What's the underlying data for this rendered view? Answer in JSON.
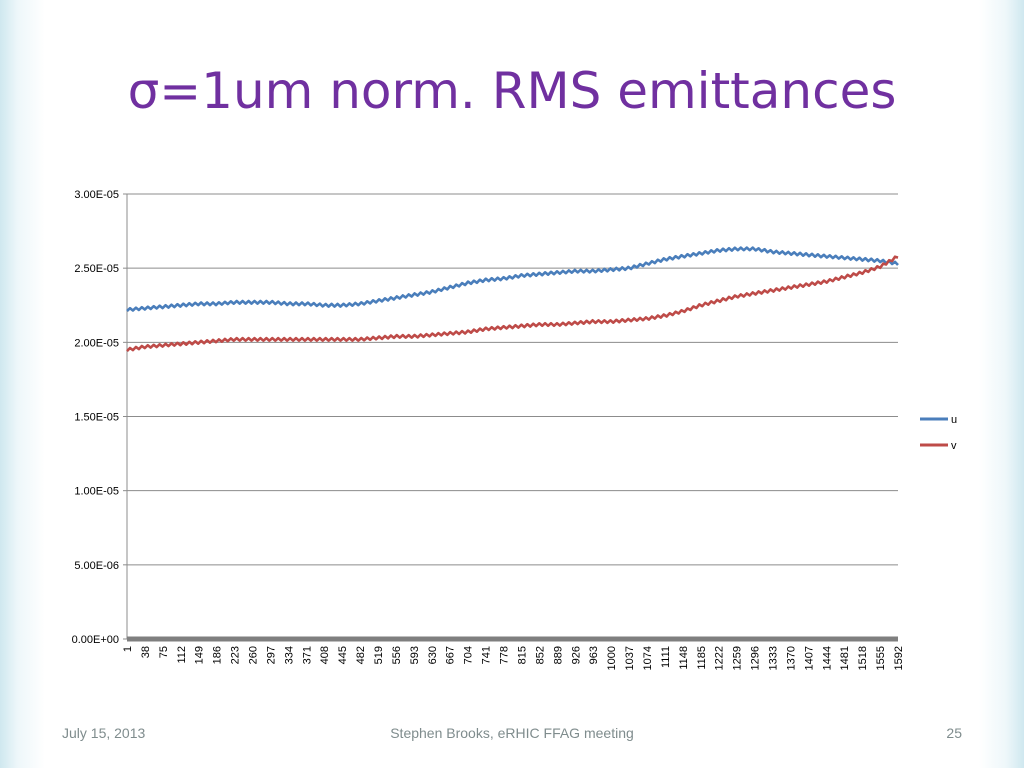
{
  "slide": {
    "title": "σ=1um norm. RMS emittances",
    "footer_date": "July 15, 2013",
    "footer_center": "Stephen Brooks, eRHIC FFAG meeting",
    "page_number": "25"
  },
  "colors": {
    "title": "#7030a0",
    "u": "#4a7ebb",
    "v": "#be4b48"
  },
  "chart_data": {
    "type": "line",
    "x": [
      1,
      38,
      75,
      112,
      149,
      186,
      223,
      260,
      297,
      334,
      371,
      408,
      445,
      482,
      519,
      556,
      593,
      630,
      667,
      704,
      741,
      778,
      815,
      852,
      889,
      926,
      963,
      1000,
      1037,
      1074,
      1111,
      1148,
      1185,
      1222,
      1259,
      1296,
      1333,
      1370,
      1407,
      1444,
      1481,
      1518,
      1555,
      1592
    ],
    "x_tick_labels": [
      "1",
      "38",
      "75",
      "112",
      "149",
      "186",
      "223",
      "260",
      "297",
      "334",
      "371",
      "408",
      "445",
      "482",
      "519",
      "556",
      "593",
      "630",
      "667",
      "704",
      "741",
      "778",
      "815",
      "852",
      "889",
      "926",
      "963",
      "1000",
      "1037",
      "1074",
      "1111",
      "1148",
      "1185",
      "1222",
      "1259",
      "1296",
      "1333",
      "1370",
      "1407",
      "1444",
      "1481",
      "1518",
      "1555",
      "1592"
    ],
    "y_tick_labels": [
      "0.00E+00",
      "5.00E-06",
      "1.00E-05",
      "1.50E-05",
      "2.00E-05",
      "2.50E-05",
      "3.00E-05"
    ],
    "ylim": [
      0,
      3e-05
    ],
    "grid": true,
    "legend_position": "right",
    "series": [
      {
        "name": "u",
        "values": [
          2.22e-05,
          2.23e-05,
          2.24e-05,
          2.25e-05,
          2.26e-05,
          2.26e-05,
          2.27e-05,
          2.27e-05,
          2.27e-05,
          2.26e-05,
          2.26e-05,
          2.25e-05,
          2.25e-05,
          2.26e-05,
          2.28e-05,
          2.3e-05,
          2.32e-05,
          2.34e-05,
          2.37e-05,
          2.4e-05,
          2.42e-05,
          2.43e-05,
          2.45e-05,
          2.46e-05,
          2.47e-05,
          2.48e-05,
          2.48e-05,
          2.49e-05,
          2.5e-05,
          2.53e-05,
          2.56e-05,
          2.58e-05,
          2.6e-05,
          2.62e-05,
          2.63e-05,
          2.63e-05,
          2.61e-05,
          2.6e-05,
          2.59e-05,
          2.58e-05,
          2.57e-05,
          2.56e-05,
          2.55e-05,
          2.53e-05
        ]
      },
      {
        "name": "v",
        "values": [
          1.95e-05,
          1.97e-05,
          1.98e-05,
          1.99e-05,
          2e-05,
          2.01e-05,
          2.02e-05,
          2.02e-05,
          2.02e-05,
          2.02e-05,
          2.02e-05,
          2.02e-05,
          2.02e-05,
          2.02e-05,
          2.03e-05,
          2.04e-05,
          2.04e-05,
          2.05e-05,
          2.06e-05,
          2.07e-05,
          2.09e-05,
          2.1e-05,
          2.11e-05,
          2.12e-05,
          2.12e-05,
          2.13e-05,
          2.14e-05,
          2.14e-05,
          2.15e-05,
          2.16e-05,
          2.18e-05,
          2.21e-05,
          2.25e-05,
          2.28e-05,
          2.31e-05,
          2.33e-05,
          2.35e-05,
          2.37e-05,
          2.39e-05,
          2.41e-05,
          2.44e-05,
          2.47e-05,
          2.51e-05,
          2.58e-05
        ]
      }
    ]
  }
}
